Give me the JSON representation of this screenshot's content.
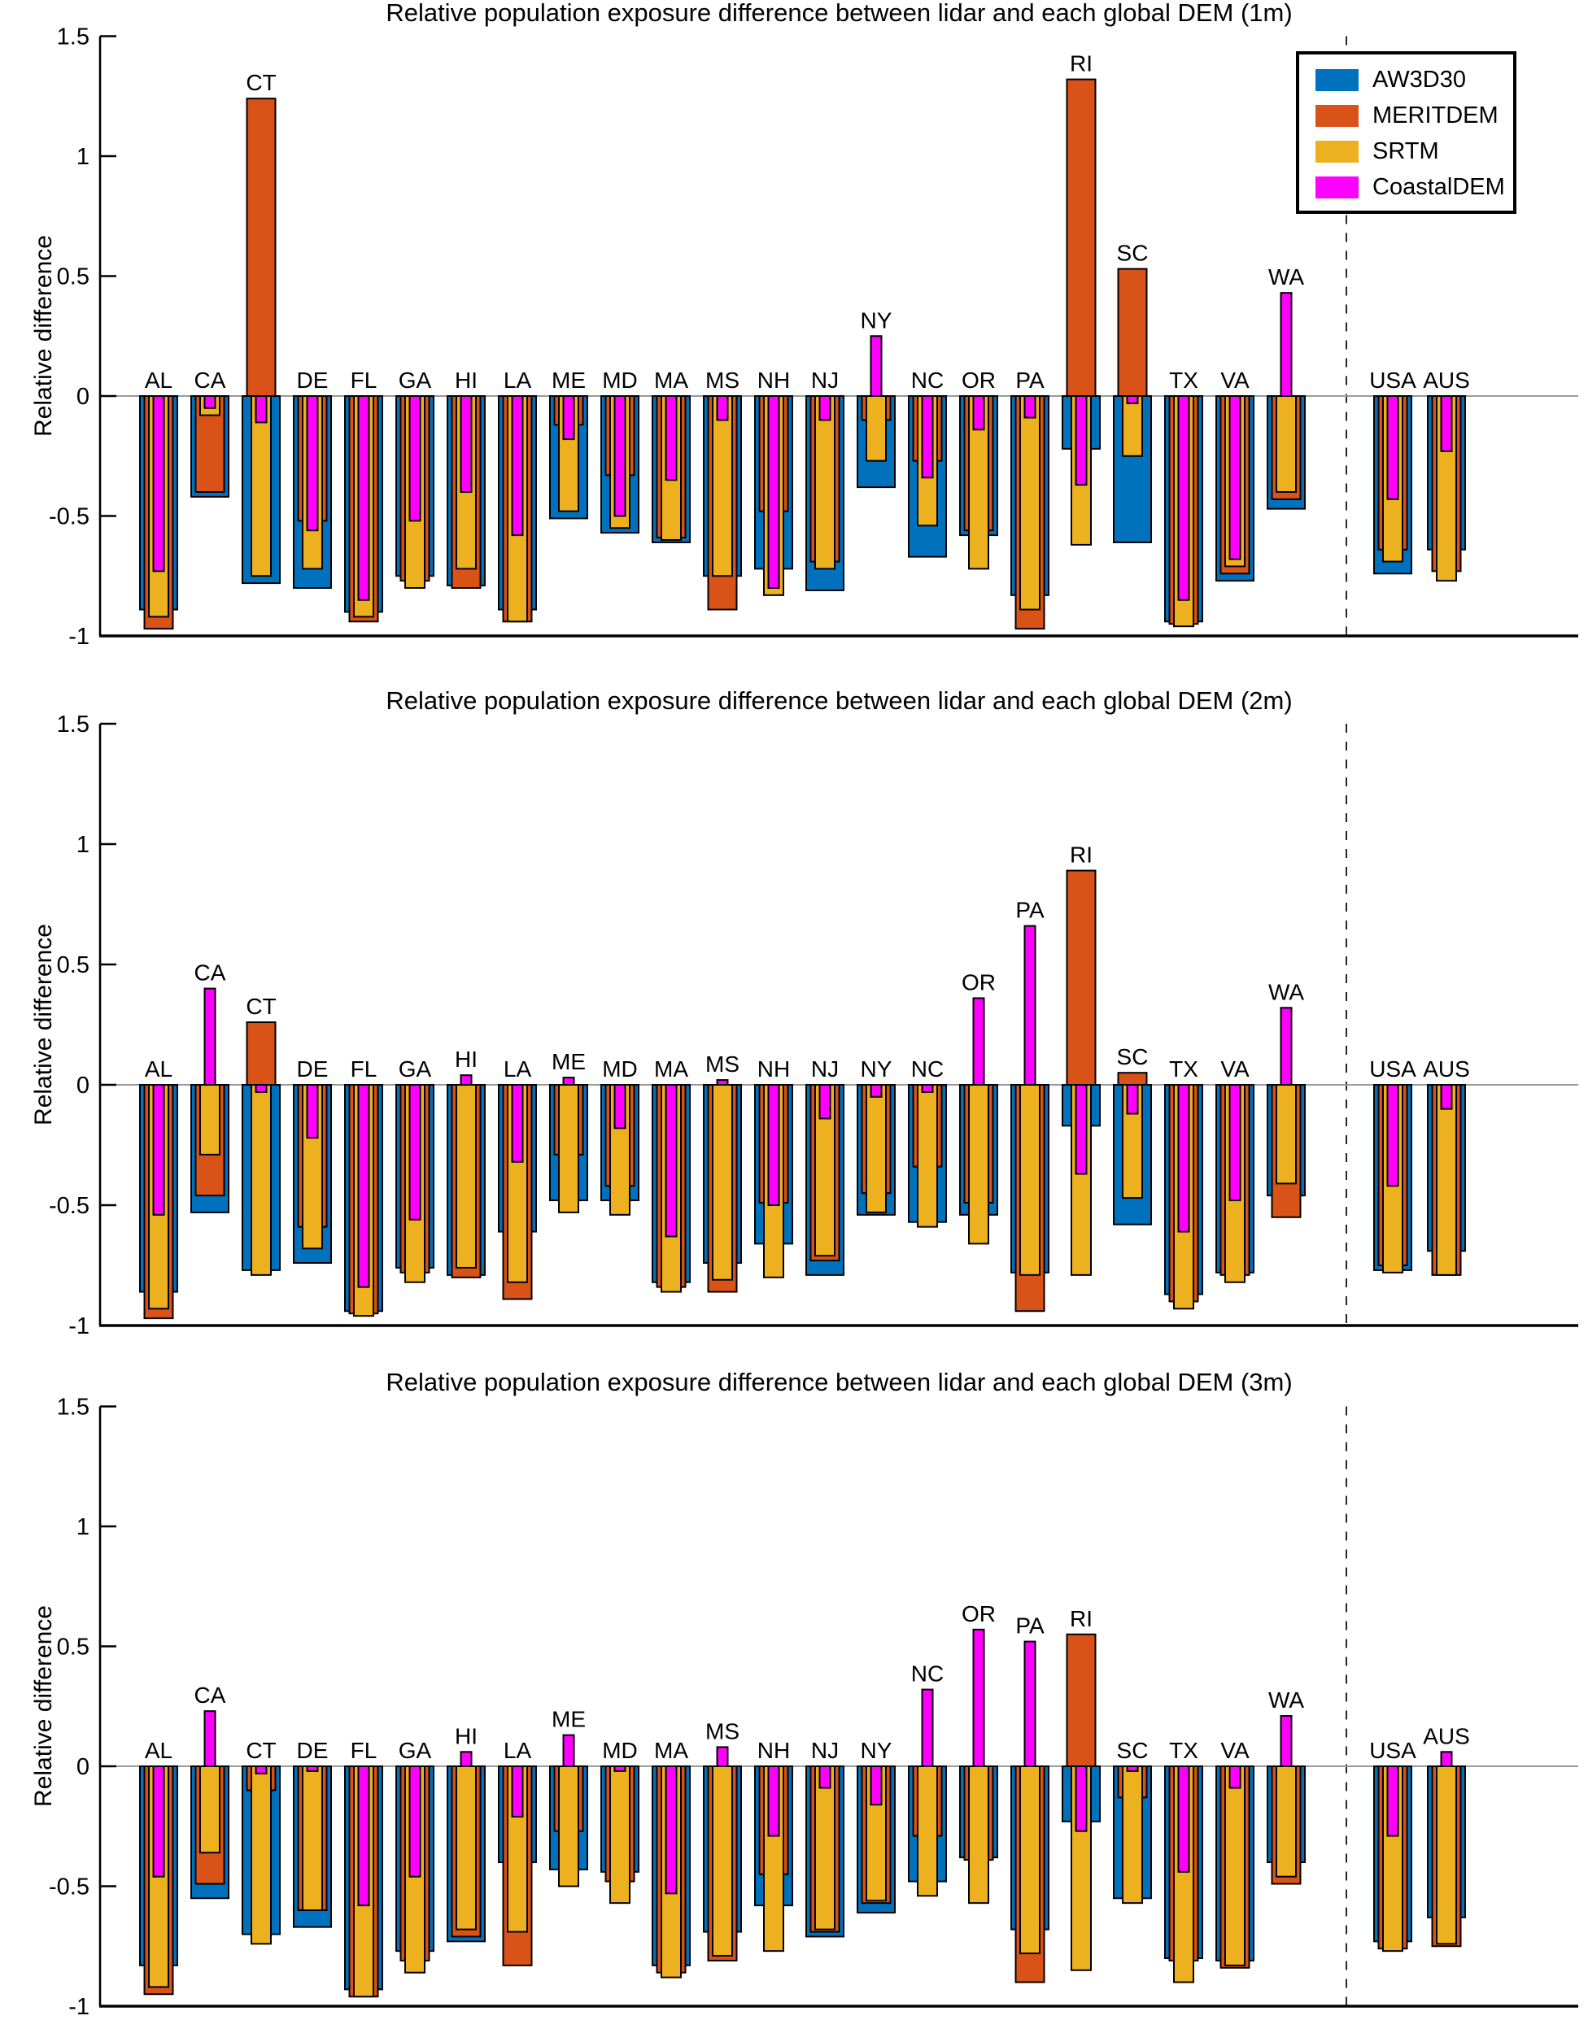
{
  "figure": {
    "ylabel": "Relative difference",
    "legend_items": [
      {
        "label": "AW3D30",
        "color": "#0072BD"
      },
      {
        "label": "MERITDEM",
        "color": "#D95319"
      },
      {
        "label": "SRTM",
        "color": "#EDB120"
      },
      {
        "label": "CoastalDEM",
        "color": "#FF00FF"
      }
    ],
    "colors": {
      "AW3D30": "#0072BD",
      "MERITDEM": "#D95319",
      "SRTM": "#EDB120",
      "CoastalDEM": "#FF00FF"
    }
  },
  "chart_data": [
    {
      "type": "bar",
      "title": "Relative population exposure difference between lidar and each global DEM (1m)",
      "xlabel": "",
      "ylabel": "Relative difference",
      "ylim": [
        -1,
        1.5
      ],
      "grid": false,
      "legend_position": "top-right",
      "bar_style": "nested-overlay",
      "separator_before": "USA",
      "yticks": [
        {
          "v": 1.5,
          "label": "1.5"
        },
        {
          "v": 1,
          "label": "1"
        },
        {
          "v": 0.5,
          "label": "0.5"
        },
        {
          "v": 0,
          "label": "0"
        },
        {
          "v": -0.5,
          "label": "-0.5"
        },
        {
          "v": -1,
          "label": "-1"
        }
      ],
      "categories": [
        "AL",
        "CA",
        "CT",
        "DE",
        "FL",
        "GA",
        "HI",
        "LA",
        "ME",
        "MD",
        "MA",
        "MS",
        "NH",
        "NJ",
        "NY",
        "NC",
        "OR",
        "PA",
        "RI",
        "SC",
        "TX",
        "VA",
        "WA",
        "USA",
        "AUS"
      ],
      "series": [
        {
          "name": "AW3D30",
          "values": [
            -0.89,
            -0.42,
            -0.78,
            -0.8,
            -0.9,
            -0.75,
            -0.79,
            -0.89,
            -0.51,
            -0.57,
            -0.61,
            -0.75,
            -0.72,
            -0.81,
            -0.38,
            -0.67,
            -0.58,
            -0.83,
            -0.22,
            -0.61,
            -0.94,
            -0.77,
            -0.47,
            -0.74,
            -0.64
          ]
        },
        {
          "name": "MERITDEM",
          "values": [
            -0.97,
            -0.4,
            1.24,
            -0.52,
            -0.94,
            -0.77,
            -0.8,
            -0.94,
            -0.12,
            -0.33,
            -0.59,
            -0.89,
            -0.48,
            -0.69,
            -0.1,
            -0.27,
            -0.56,
            -0.97,
            1.32,
            0.53,
            -0.95,
            -0.74,
            -0.43,
            -0.64,
            -0.73
          ]
        },
        {
          "name": "SRTM",
          "values": [
            -0.92,
            -0.08,
            -0.75,
            -0.72,
            -0.92,
            -0.8,
            -0.72,
            -0.94,
            -0.48,
            -0.55,
            -0.6,
            -0.75,
            -0.83,
            -0.72,
            -0.27,
            -0.54,
            -0.72,
            -0.89,
            -0.62,
            -0.25,
            -0.96,
            -0.71,
            -0.4,
            -0.69,
            -0.77
          ]
        },
        {
          "name": "CoastalDEM",
          "values": [
            -0.73,
            -0.05,
            -0.11,
            -0.56,
            -0.85,
            -0.52,
            -0.4,
            -0.58,
            -0.18,
            -0.5,
            -0.35,
            -0.1,
            -0.8,
            -0.1,
            0.25,
            -0.34,
            -0.14,
            -0.09,
            -0.37,
            -0.03,
            -0.85,
            -0.68,
            0.43,
            -0.43,
            -0.23
          ]
        }
      ]
    },
    {
      "type": "bar",
      "title": "Relative population exposure difference between lidar and each global DEM (2m)",
      "xlabel": "",
      "ylabel": "Relative difference",
      "ylim": [
        -1,
        1.5
      ],
      "grid": false,
      "bar_style": "nested-overlay",
      "separator_before": "USA",
      "yticks": [
        {
          "v": 1.5,
          "label": "1.5"
        },
        {
          "v": 1,
          "label": "1"
        },
        {
          "v": 0.5,
          "label": "0.5"
        },
        {
          "v": 0,
          "label": "0"
        },
        {
          "v": -0.5,
          "label": "-0.5"
        },
        {
          "v": -1,
          "label": "-1"
        }
      ],
      "categories": [
        "AL",
        "CA",
        "CT",
        "DE",
        "FL",
        "GA",
        "HI",
        "LA",
        "ME",
        "MD",
        "MA",
        "MS",
        "NH",
        "NJ",
        "NY",
        "NC",
        "OR",
        "PA",
        "RI",
        "SC",
        "TX",
        "VA",
        "WA",
        "USA",
        "AUS"
      ],
      "series": [
        {
          "name": "AW3D30",
          "values": [
            -0.86,
            -0.53,
            -0.77,
            -0.74,
            -0.94,
            -0.76,
            -0.79,
            -0.61,
            -0.48,
            -0.48,
            -0.82,
            -0.74,
            -0.66,
            -0.79,
            -0.54,
            -0.57,
            -0.54,
            -0.78,
            -0.17,
            -0.58,
            -0.87,
            -0.78,
            -0.46,
            -0.77,
            -0.69
          ]
        },
        {
          "name": "MERITDEM",
          "values": [
            -0.97,
            -0.46,
            0.26,
            -0.59,
            -0.95,
            -0.78,
            -0.8,
            -0.89,
            -0.29,
            -0.42,
            -0.84,
            -0.86,
            -0.49,
            -0.73,
            -0.45,
            -0.34,
            -0.49,
            -0.94,
            0.89,
            0.05,
            -0.9,
            -0.79,
            -0.55,
            -0.75,
            -0.79
          ]
        },
        {
          "name": "SRTM",
          "values": [
            -0.93,
            -0.29,
            -0.79,
            -0.68,
            -0.96,
            -0.82,
            -0.76,
            -0.82,
            -0.53,
            -0.54,
            -0.86,
            -0.81,
            -0.8,
            -0.71,
            -0.53,
            -0.59,
            -0.66,
            -0.79,
            -0.79,
            -0.47,
            -0.93,
            -0.82,
            -0.41,
            -0.78,
            -0.79
          ]
        },
        {
          "name": "CoastalDEM",
          "values": [
            -0.54,
            0.4,
            -0.03,
            -0.22,
            -0.84,
            -0.56,
            0.04,
            -0.32,
            0.03,
            -0.18,
            -0.63,
            0.02,
            -0.5,
            -0.14,
            -0.05,
            -0.03,
            0.36,
            0.66,
            -0.37,
            -0.12,
            -0.61,
            -0.48,
            0.32,
            -0.42,
            -0.1
          ]
        }
      ]
    },
    {
      "type": "bar",
      "title": "Relative population exposure difference between lidar and each global DEM (3m)",
      "xlabel": "",
      "ylabel": "Relative difference",
      "ylim": [
        -1,
        1.5
      ],
      "grid": false,
      "bar_style": "nested-overlay",
      "separator_before": "USA",
      "yticks": [
        {
          "v": 1.5,
          "label": "1.5"
        },
        {
          "v": 1,
          "label": "1"
        },
        {
          "v": 0.5,
          "label": "0.5"
        },
        {
          "v": 0,
          "label": "0"
        },
        {
          "v": -0.5,
          "label": "-0.5"
        },
        {
          "v": -1,
          "label": "-1"
        }
      ],
      "categories": [
        "AL",
        "CA",
        "CT",
        "DE",
        "FL",
        "GA",
        "HI",
        "LA",
        "ME",
        "MD",
        "MA",
        "MS",
        "NH",
        "NJ",
        "NY",
        "NC",
        "OR",
        "PA",
        "RI",
        "SC",
        "TX",
        "VA",
        "WA",
        "USA",
        "AUS"
      ],
      "series": [
        {
          "name": "AW3D30",
          "values": [
            -0.83,
            -0.55,
            -0.7,
            -0.67,
            -0.93,
            -0.77,
            -0.73,
            -0.4,
            -0.43,
            -0.44,
            -0.83,
            -0.69,
            -0.58,
            -0.71,
            -0.61,
            -0.48,
            -0.38,
            -0.68,
            -0.23,
            -0.55,
            -0.8,
            -0.81,
            -0.4,
            -0.73,
            -0.63
          ]
        },
        {
          "name": "MERITDEM",
          "values": [
            -0.95,
            -0.49,
            -0.1,
            -0.6,
            -0.96,
            -0.81,
            -0.71,
            -0.83,
            -0.27,
            -0.48,
            -0.86,
            -0.81,
            -0.45,
            -0.69,
            -0.57,
            -0.29,
            -0.39,
            -0.9,
            0.55,
            -0.13,
            -0.81,
            -0.84,
            -0.49,
            -0.76,
            -0.75
          ]
        },
        {
          "name": "SRTM",
          "values": [
            -0.92,
            -0.36,
            -0.74,
            -0.6,
            -0.96,
            -0.86,
            -0.68,
            -0.69,
            -0.5,
            -0.57,
            -0.88,
            -0.79,
            -0.77,
            -0.68,
            -0.56,
            -0.54,
            -0.57,
            -0.78,
            -0.85,
            -0.57,
            -0.9,
            -0.83,
            -0.46,
            -0.77,
            -0.74
          ]
        },
        {
          "name": "CoastalDEM",
          "values": [
            -0.46,
            0.23,
            -0.03,
            -0.02,
            -0.58,
            -0.46,
            0.06,
            -0.21,
            0.13,
            -0.02,
            -0.53,
            0.08,
            -0.29,
            -0.09,
            -0.16,
            0.32,
            0.57,
            0.52,
            -0.27,
            -0.02,
            -0.44,
            -0.09,
            0.21,
            -0.29,
            0.06
          ]
        }
      ]
    }
  ]
}
